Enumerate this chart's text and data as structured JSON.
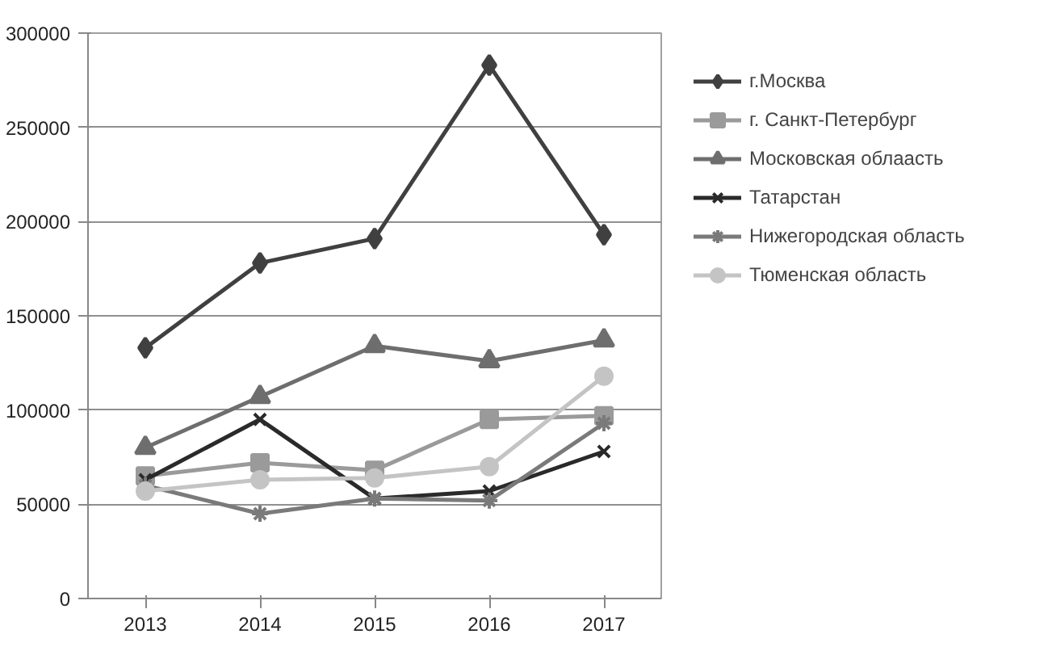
{
  "chart_data": {
    "type": "line",
    "categories": [
      "2013",
      "2014",
      "2015",
      "2016",
      "2017"
    ],
    "ylim": [
      0,
      300000
    ],
    "yticks": [
      0,
      50000,
      100000,
      150000,
      200000,
      250000,
      300000
    ],
    "grid": "y",
    "legend": "right",
    "series": [
      {
        "name": "г.Москва",
        "color": "#404040",
        "marker": "diamond",
        "values": [
          133000,
          178000,
          191000,
          283000,
          193000
        ]
      },
      {
        "name": "г. Санкт-Петербург",
        "color": "#9a9a9a",
        "marker": "square",
        "values": [
          65000,
          72000,
          68000,
          95000,
          97000
        ]
      },
      {
        "name": "Московская облаасть",
        "color": "#6e6e6e",
        "marker": "triangle",
        "values": [
          80000,
          107000,
          134000,
          126000,
          137000
        ]
      },
      {
        "name": "Татарстан",
        "color": "#2a2a2a",
        "marker": "x",
        "values": [
          63000,
          95000,
          53000,
          57000,
          78000
        ]
      },
      {
        "name": "Нижегородская область",
        "color": "#7a7a7a",
        "marker": "cross",
        "values": [
          60000,
          45000,
          53000,
          52000,
          93000
        ]
      },
      {
        "name": "Тюменская область",
        "color": "#c4c4c4",
        "marker": "circle",
        "values": [
          57000,
          63000,
          64000,
          70000,
          118000
        ]
      }
    ]
  }
}
